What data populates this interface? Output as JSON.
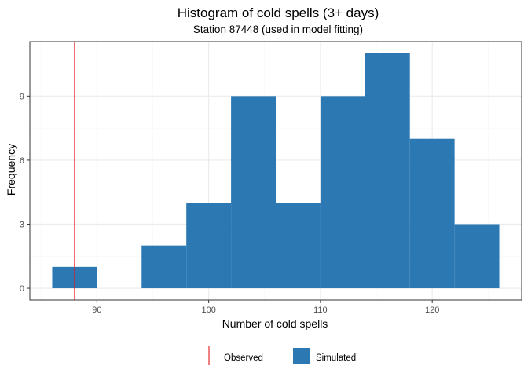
{
  "chart_data": {
    "type": "bar",
    "title": "Histogram of cold spells (3+ days)",
    "subtitle": "Station 87448 (used in model fitting)",
    "xlabel": "Number of cold spells",
    "ylabel": "Frequency",
    "bins": [
      {
        "x0": 86,
        "x1": 90,
        "count": 1
      },
      {
        "x0": 90,
        "x1": 94,
        "count": 0
      },
      {
        "x0": 94,
        "x1": 98,
        "count": 2
      },
      {
        "x0": 98,
        "x1": 102,
        "count": 4
      },
      {
        "x0": 102,
        "x1": 106,
        "count": 9
      },
      {
        "x0": 106,
        "x1": 110,
        "count": 4
      },
      {
        "x0": 110,
        "x1": 114,
        "count": 9
      },
      {
        "x0": 114,
        "x1": 118,
        "count": 11
      },
      {
        "x0": 118,
        "x1": 122,
        "count": 7
      },
      {
        "x0": 122,
        "x1": 126,
        "count": 3
      }
    ],
    "observed": 88,
    "xlim": [
      84,
      128
    ],
    "ylim": [
      -0.55,
      11.55
    ],
    "x_ticks": [
      90,
      100,
      110,
      120
    ],
    "y_ticks": [
      0,
      3,
      6,
      9
    ],
    "grid": true,
    "legend": {
      "position": "bottom",
      "items": [
        {
          "label": "Observed",
          "kind": "line",
          "color": "#e41a1c"
        },
        {
          "label": "Simulated",
          "kind": "fill",
          "color": "#2b78b2"
        }
      ]
    },
    "colors": {
      "bar": "#2b78b2",
      "observed": "#e41a1c",
      "grid_major": "#ebebeb",
      "grid_minor": "#f5f5f5",
      "panel_border": "#333333"
    }
  }
}
